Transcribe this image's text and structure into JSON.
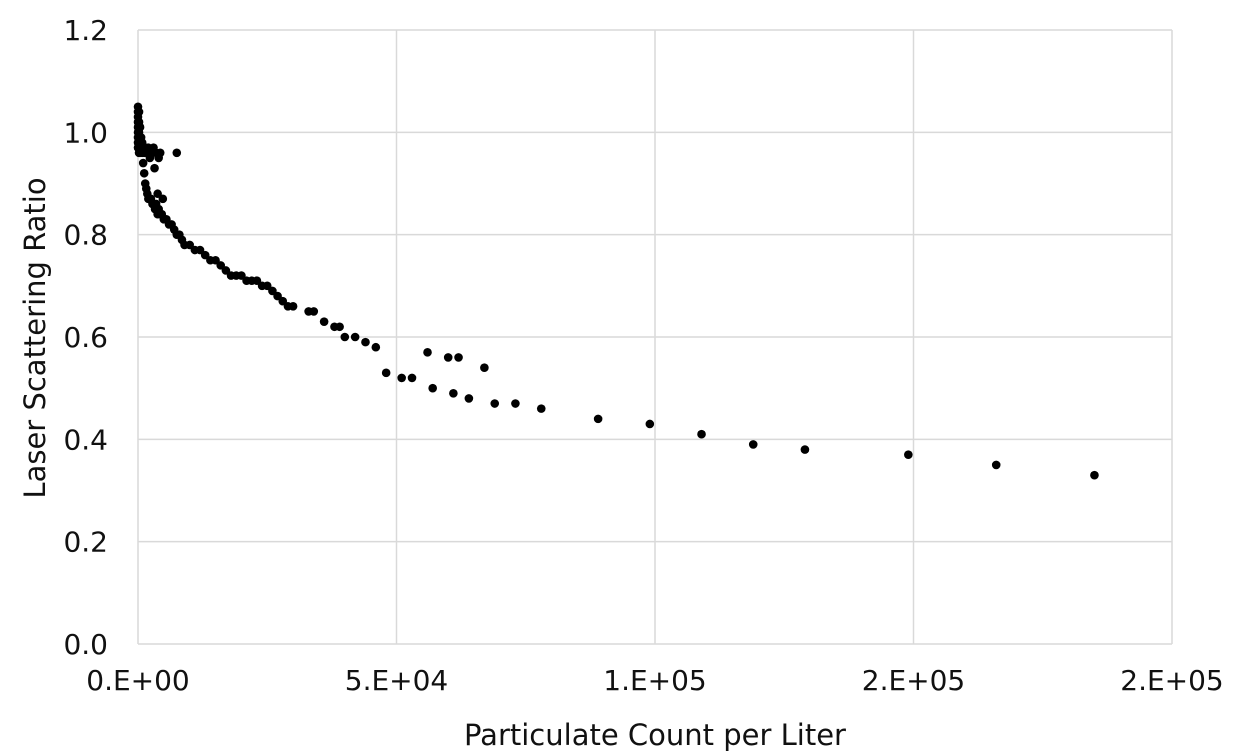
{
  "chart_data": {
    "type": "scatter",
    "title": "",
    "xlabel": "Particulate Count per Liter",
    "ylabel": "Laser Scattering Ratio",
    "xlim": [
      0,
      200000
    ],
    "ylim": [
      0,
      1.2
    ],
    "x_ticks": [
      0,
      50000,
      100000,
      150000,
      200000
    ],
    "x_tick_labels": [
      "0.E+00",
      "5.E+04",
      "1.E+05",
      "2.E+05",
      "2.E+05"
    ],
    "y_ticks": [
      0,
      0.2,
      0.4,
      0.6,
      0.8,
      1.0,
      1.2
    ],
    "y_tick_labels": [
      "0.0",
      "0.2",
      "0.4",
      "0.6",
      "0.8",
      "1.0",
      "1.2"
    ],
    "grid": true,
    "marker_color": "#000000",
    "grid_color": "#d9d9d9",
    "series": [
      {
        "points": [
          [
            0,
            1.05
          ],
          [
            0,
            1.04
          ],
          [
            0,
            1.03
          ],
          [
            0,
            1.02
          ],
          [
            0,
            1.01
          ],
          [
            0,
            1.0
          ],
          [
            0,
            0.99
          ],
          [
            0,
            0.98
          ],
          [
            0,
            0.97
          ],
          [
            200,
            1.04
          ],
          [
            200,
            1.02
          ],
          [
            200,
            1.0
          ],
          [
            200,
            0.98
          ],
          [
            200,
            0.96
          ],
          [
            400,
            1.01
          ],
          [
            400,
            0.99
          ],
          [
            400,
            0.97
          ],
          [
            400,
            0.96
          ],
          [
            600,
            0.99
          ],
          [
            600,
            0.97
          ],
          [
            800,
            0.98
          ],
          [
            800,
            0.96
          ],
          [
            1000,
            0.97
          ],
          [
            1200,
            0.96
          ],
          [
            1500,
            0.97
          ],
          [
            1800,
            0.96
          ],
          [
            2000,
            0.97
          ],
          [
            2300,
            0.95
          ],
          [
            2600,
            0.96
          ],
          [
            3000,
            0.97
          ],
          [
            3200,
            0.93
          ],
          [
            3500,
            0.96
          ],
          [
            4000,
            0.95
          ],
          [
            4300,
            0.96
          ],
          [
            1000,
            0.94
          ],
          [
            1200,
            0.92
          ],
          [
            1400,
            0.9
          ],
          [
            1600,
            0.89
          ],
          [
            1800,
            0.88
          ],
          [
            2000,
            0.87
          ],
          [
            2200,
            0.87
          ],
          [
            2500,
            0.87
          ],
          [
            2800,
            0.86
          ],
          [
            3000,
            0.86
          ],
          [
            3300,
            0.85
          ],
          [
            3500,
            0.86
          ],
          [
            3800,
            0.84
          ],
          [
            4000,
            0.85
          ],
          [
            4300,
            0.84
          ],
          [
            4600,
            0.84
          ],
          [
            5000,
            0.83
          ],
          [
            5500,
            0.83
          ],
          [
            6000,
            0.82
          ],
          [
            6500,
            0.82
          ],
          [
            7000,
            0.81
          ],
          [
            7500,
            0.8
          ],
          [
            8000,
            0.8
          ],
          [
            8500,
            0.79
          ],
          [
            9000,
            0.78
          ],
          [
            10000,
            0.78
          ],
          [
            11000,
            0.77
          ],
          [
            12000,
            0.77
          ],
          [
            13000,
            0.76
          ],
          [
            14000,
            0.75
          ],
          [
            15000,
            0.75
          ],
          [
            16000,
            0.74
          ],
          [
            17000,
            0.73
          ],
          [
            18000,
            0.72
          ],
          [
            19000,
            0.72
          ],
          [
            20000,
            0.72
          ],
          [
            21000,
            0.71
          ],
          [
            22000,
            0.71
          ],
          [
            23000,
            0.71
          ],
          [
            24000,
            0.7
          ],
          [
            25000,
            0.7
          ],
          [
            26000,
            0.69
          ],
          [
            27000,
            0.68
          ],
          [
            28000,
            0.67
          ],
          [
            29000,
            0.66
          ],
          [
            30000,
            0.66
          ],
          [
            33000,
            0.65
          ],
          [
            34000,
            0.65
          ],
          [
            36000,
            0.63
          ],
          [
            38000,
            0.62
          ],
          [
            39000,
            0.62
          ],
          [
            40000,
            0.6
          ],
          [
            42000,
            0.6
          ],
          [
            44000,
            0.59
          ],
          [
            46000,
            0.58
          ],
          [
            56000,
            0.57
          ],
          [
            60000,
            0.56
          ],
          [
            62000,
            0.56
          ],
          [
            67000,
            0.54
          ],
          [
            48000,
            0.53
          ],
          [
            51000,
            0.52
          ],
          [
            53000,
            0.52
          ],
          [
            57000,
            0.5
          ],
          [
            61000,
            0.49
          ],
          [
            64000,
            0.48
          ],
          [
            69000,
            0.47
          ],
          [
            73000,
            0.47
          ],
          [
            78000,
            0.46
          ],
          [
            89000,
            0.44
          ],
          [
            99000,
            0.43
          ],
          [
            109000,
            0.41
          ],
          [
            119000,
            0.39
          ],
          [
            129000,
            0.38
          ],
          [
            149000,
            0.37
          ],
          [
            166000,
            0.35
          ],
          [
            185000,
            0.33
          ],
          [
            7500,
            0.96
          ],
          [
            3800,
            0.88
          ],
          [
            4800,
            0.87
          ]
        ]
      }
    ]
  }
}
